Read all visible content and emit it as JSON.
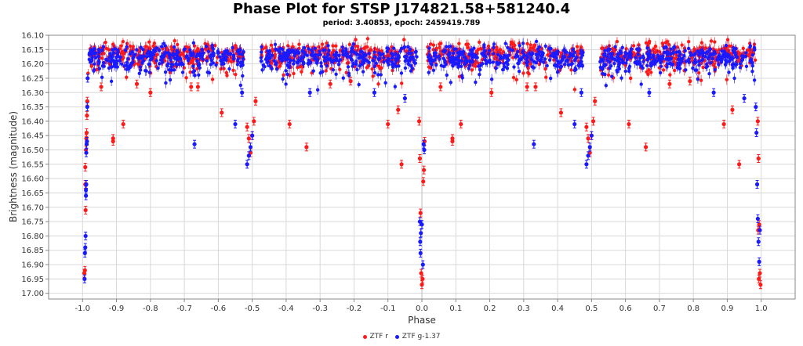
{
  "title": "Phase Plot for STSP J174821.58+581240.4",
  "subtitle": "period: 3.40853, epoch: 2459419.789",
  "colors": {
    "ztf_r": "#ff1a1a",
    "ztf_g": "#1a1aff",
    "grid": "#d8d8d8",
    "axis": "#888888"
  },
  "legend": [
    {
      "label": "ZTF r",
      "color": "#ff1a1a"
    },
    {
      "label": "ZTF g-1.37",
      "color": "#1a1aff"
    }
  ],
  "chart_data": {
    "type": "scatter",
    "title": "Phase Plot for STSP J174821.58+581240.4",
    "subtitle": "period: 3.40853, epoch: 2459419.789",
    "xlabel": "Phase",
    "ylabel": "Brightness (magnitude)",
    "xlim": [
      -1.1,
      1.1
    ],
    "ylim": [
      16.1,
      17.02
    ],
    "y_inverted": true,
    "grid": true,
    "legend_position": "bottom",
    "xticks": [
      "-1.0",
      "-0.9",
      "-0.8",
      "-0.7",
      "-0.6",
      "-0.5",
      "-0.4",
      "-0.3",
      "-0.2",
      "-0.1",
      "0.0",
      "0.1",
      "0.2",
      "0.3",
      "0.4",
      "0.5",
      "0.6",
      "0.7",
      "0.8",
      "0.9",
      "1.0"
    ],
    "yticks": [
      "16.10",
      "16.15",
      "16.20",
      "16.25",
      "16.30",
      "16.35",
      "16.40",
      "16.45",
      "16.50",
      "16.55",
      "16.60",
      "16.65",
      "16.70",
      "16.75",
      "16.80",
      "16.85",
      "16.90",
      "16.95",
      "17.00"
    ],
    "series": [
      {
        "name": "ZTF r",
        "color": "#ff1a1a",
        "baseline_magnitude": 16.17,
        "points": [
          [
            -0.995,
            16.93
          ],
          [
            -0.993,
            16.92
          ],
          [
            -0.991,
            16.71
          ],
          [
            -0.992,
            16.56
          ],
          [
            -0.99,
            16.5
          ],
          [
            -0.989,
            16.46
          ],
          [
            -0.988,
            16.44
          ],
          [
            -0.987,
            16.38
          ],
          [
            -0.986,
            16.33
          ],
          [
            -0.992,
            16.62
          ],
          [
            -0.91,
            16.46
          ],
          [
            -0.91,
            16.47
          ],
          [
            -0.88,
            16.41
          ],
          [
            -0.84,
            16.27
          ],
          [
            -0.8,
            16.3
          ],
          [
            -0.68,
            16.28
          ],
          [
            -0.66,
            16.28
          ],
          [
            -0.59,
            16.37
          ],
          [
            -0.945,
            16.28
          ],
          [
            -0.515,
            16.42
          ],
          [
            -0.51,
            16.46
          ],
          [
            -0.505,
            16.51
          ],
          [
            -0.5,
            16.45
          ],
          [
            -0.495,
            16.4
          ],
          [
            -0.49,
            16.33
          ],
          [
            -0.39,
            16.41
          ],
          [
            -0.34,
            16.49
          ],
          [
            -0.27,
            16.27
          ],
          [
            -0.21,
            16.26
          ],
          [
            -0.1,
            16.41
          ],
          [
            -0.07,
            16.36
          ],
          [
            -0.06,
            16.55
          ],
          [
            -0.008,
            16.4
          ],
          [
            -0.006,
            16.53
          ],
          [
            -0.004,
            16.72
          ],
          [
            -0.002,
            16.93
          ],
          [
            0.0,
            16.97
          ],
          [
            0.002,
            16.95
          ],
          [
            0.004,
            16.61
          ],
          [
            0.006,
            16.57
          ],
          [
            0.008,
            16.47
          ],
          [
            0.09,
            16.46
          ],
          [
            0.09,
            16.47
          ],
          [
            0.115,
            16.41
          ],
          [
            0.205,
            16.3
          ],
          [
            0.31,
            16.28
          ],
          [
            0.335,
            16.28
          ],
          [
            0.41,
            16.37
          ],
          [
            0.055,
            16.28
          ],
          [
            0.485,
            16.42
          ],
          [
            0.49,
            16.46
          ],
          [
            0.495,
            16.51
          ],
          [
            0.5,
            16.45
          ],
          [
            0.505,
            16.4
          ],
          [
            0.51,
            16.33
          ],
          [
            0.61,
            16.41
          ],
          [
            0.66,
            16.49
          ],
          [
            0.73,
            16.27
          ],
          [
            0.79,
            16.26
          ],
          [
            0.89,
            16.41
          ],
          [
            0.915,
            16.36
          ],
          [
            0.935,
            16.55
          ],
          [
            0.99,
            16.4
          ],
          [
            0.992,
            16.53
          ],
          [
            0.994,
            16.76
          ],
          [
            0.996,
            16.93
          ],
          [
            0.998,
            16.97
          ],
          [
            0.993,
            16.95
          ],
          [
            0.991,
            16.78
          ]
        ]
      },
      {
        "name": "ZTF g-1.37",
        "color": "#1a1aff",
        "baseline_magnitude": 16.17,
        "points": [
          [
            -0.994,
            16.95
          ],
          [
            -0.993,
            16.86
          ],
          [
            -0.992,
            16.84
          ],
          [
            -0.991,
            16.8
          ],
          [
            -0.99,
            16.64
          ],
          [
            -0.989,
            16.62
          ],
          [
            -0.989,
            16.51
          ],
          [
            -0.988,
            16.48
          ],
          [
            -0.987,
            16.47
          ],
          [
            -0.986,
            16.35
          ],
          [
            -0.985,
            16.25
          ],
          [
            -0.99,
            16.66
          ],
          [
            -0.67,
            16.48
          ],
          [
            -0.55,
            16.41
          ],
          [
            -0.53,
            16.3
          ],
          [
            -0.515,
            16.55
          ],
          [
            -0.51,
            16.52
          ],
          [
            -0.505,
            16.49
          ],
          [
            -0.5,
            16.45
          ],
          [
            -0.33,
            16.3
          ],
          [
            -0.14,
            16.3
          ],
          [
            -0.05,
            16.32
          ],
          [
            -0.005,
            16.82
          ],
          [
            -0.004,
            16.86
          ],
          [
            -0.003,
            16.79
          ],
          [
            0.0,
            16.76
          ],
          [
            0.003,
            16.9
          ],
          [
            -0.006,
            16.75
          ],
          [
            0.005,
            16.48
          ],
          [
            0.007,
            16.5
          ],
          [
            0.33,
            16.48
          ],
          [
            0.45,
            16.41
          ],
          [
            0.47,
            16.3
          ],
          [
            0.485,
            16.55
          ],
          [
            0.49,
            16.52
          ],
          [
            0.495,
            16.49
          ],
          [
            0.5,
            16.45
          ],
          [
            0.67,
            16.3
          ],
          [
            0.86,
            16.3
          ],
          [
            0.95,
            16.32
          ],
          [
            0.99,
            16.74
          ],
          [
            0.992,
            16.82
          ],
          [
            0.994,
            16.89
          ],
          [
            0.996,
            16.78
          ],
          [
            0.988,
            16.62
          ],
          [
            0.986,
            16.44
          ],
          [
            0.984,
            16.35
          ]
        ]
      }
    ]
  }
}
